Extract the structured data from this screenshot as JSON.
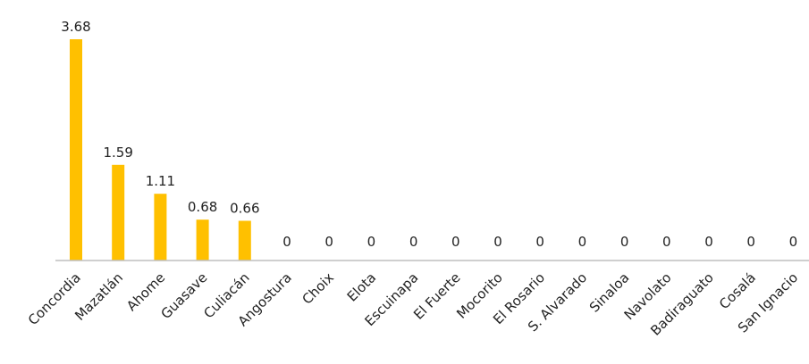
{
  "chart_data": {
    "type": "bar",
    "title": "",
    "xlabel": "",
    "ylabel": "",
    "categories": [
      "Concordia",
      "Mazatlán",
      "Ahome",
      "Guasave",
      "Culiacán",
      "Angostura",
      "Choix",
      "Elota",
      "Escuinapa",
      "El Fuerte",
      "Mocorito",
      "El Rosario",
      "S. Alvarado",
      "Sinaloa",
      "Navolato",
      "Badiraguato",
      "Cosalá",
      "San Ignacio"
    ],
    "values": [
      3.68,
      1.59,
      1.11,
      0.68,
      0.66,
      0,
      0,
      0,
      0,
      0,
      0,
      0,
      0,
      0,
      0,
      0,
      0,
      0
    ],
    "data_labels": [
      "3.68",
      "1.59",
      "1.11",
      "0.68",
      "0.66",
      "0",
      "0",
      "0",
      "0",
      "0",
      "0",
      "0",
      "0",
      "0",
      "0",
      "0",
      "0",
      "0"
    ],
    "ylim": [
      0,
      3.68
    ],
    "bar_color": "#FFC000",
    "axis_color": "#BFBFBF",
    "grid": false,
    "legend": "none"
  }
}
